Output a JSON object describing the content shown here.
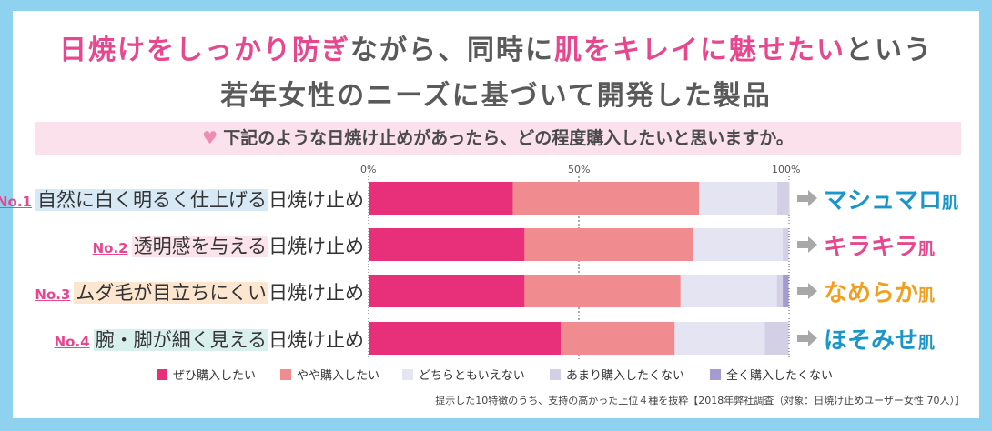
{
  "header": {
    "line1_a": "日焼けをしっかり防ぎ",
    "line1_b": "ながら、同時に",
    "line1_c": "肌をキレイに魅せたい",
    "line1_d": "という",
    "line2": "若年女性のニーズに基づいて開発した製品"
  },
  "question": "下記のような日焼け止めがあったら、どの程度購入したいと思いますか。",
  "colors": {
    "pink": "#e7478f",
    "title_gray": "#5a5a5a",
    "series": [
      "#e8307a",
      "#f08b8f",
      "#e4e4f2",
      "#d3d0e6",
      "#a59bd0"
    ],
    "result": [
      "#1a96c8",
      "#e7478f",
      "#f0a020",
      "#1a96c8"
    ],
    "label_highlight": [
      "#d6e9f5",
      "#fbe3ec",
      "#fde6d0",
      "#d8efec"
    ]
  },
  "rows": [
    {
      "no": "No.1",
      "highlight": "自然に白く明るく仕上げる",
      "suffix": "日焼け止め",
      "result": "マシュマロ",
      "result_suffix": "肌"
    },
    {
      "no": "No.2",
      "highlight": "透明感を与える",
      "suffix": "日焼け止め",
      "result": "キラキラ",
      "result_suffix": "肌"
    },
    {
      "no": "No.3",
      "highlight": "ムダ毛が目立ちにくい",
      "suffix": "日焼け止め",
      "result": "なめらか",
      "result_suffix": "肌"
    },
    {
      "no": "No.4",
      "highlight": "腕・脚が細く見える",
      "suffix": "日焼け止め",
      "result": "ほそみせ",
      "result_suffix": "肌"
    }
  ],
  "footnote": "提示した10特徴のうち、支持の高かった上位４種を抜粋【2018年弊社調査（対象：日焼け止めユーザー女性 70人）】",
  "chart_data": {
    "type": "bar",
    "orientation": "horizontal",
    "stacked": true,
    "categories": [
      "自然に白く明るく仕上げる日焼け止め",
      "透明感を与える日焼け止め",
      "ムダ毛が目立ちにくい日焼け止め",
      "腕・脚が細く見える日焼け止め"
    ],
    "series": [
      {
        "name": "ぜひ購入したい",
        "values": [
          34.3,
          37.1,
          37.1,
          45.7
        ]
      },
      {
        "name": "やや購入したい",
        "values": [
          44.3,
          40.0,
          37.1,
          27.1
        ]
      },
      {
        "name": "どちらともいえない",
        "values": [
          18.6,
          21.4,
          22.9,
          21.4
        ]
      },
      {
        "name": "あまり購入したくない",
        "values": [
          2.9,
          1.4,
          1.4,
          5.7
        ]
      },
      {
        "name": "全く購入したくない",
        "values": [
          0.0,
          0.0,
          1.4,
          0.0
        ]
      }
    ],
    "x_ticks": [
      "0%",
      "50%",
      "100%"
    ],
    "xlim": [
      0,
      100
    ],
    "legend": "bottom",
    "grid": true
  }
}
